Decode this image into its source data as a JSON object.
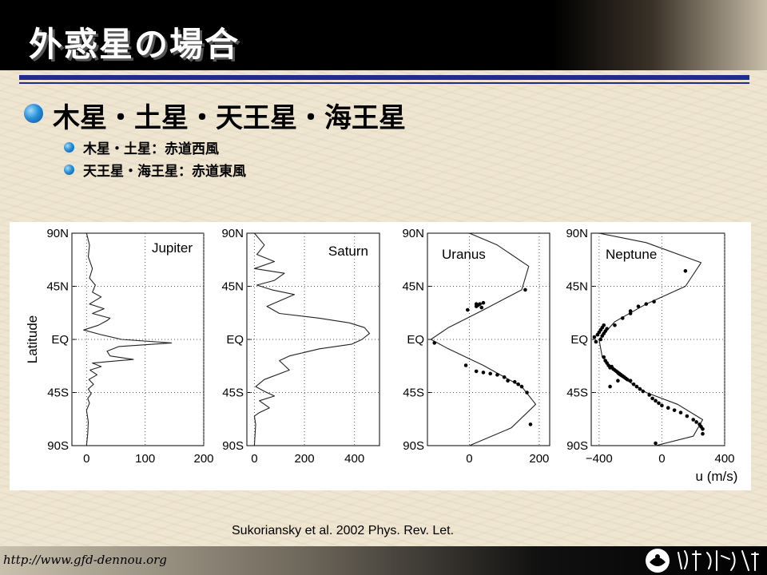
{
  "title": "外惑星の場合",
  "main_bullet": "木星・土星・天王星・海王星",
  "sub_bullets": [
    "木星・土星：赤道西風",
    "天王星・海王星：赤道東風"
  ],
  "citation": "Sukoriansky et al. 2002 Phys. Rev. Let.",
  "url": "http://www.gfd-dennou.org",
  "logo_text": "地球流体電脳倶楽部",
  "chart_data": [
    {
      "type": "line",
      "series": [
        {
          "name": "Jupiter"
        }
      ],
      "xlabel": "",
      "ylabel": "Latitude",
      "xlim": [
        -25,
        200
      ],
      "xticks": [
        "0",
        "100",
        "200"
      ],
      "ylim": [
        -90,
        90
      ],
      "yticks": [
        "90N",
        "45N",
        "EQ",
        "45S",
        "90S"
      ],
      "x": [
        0,
        2,
        3,
        0,
        5,
        2,
        8,
        3,
        12,
        4,
        18,
        6,
        25,
        10,
        80,
        40,
        35,
        55,
        145,
        60,
        25,
        -5,
        20,
        35,
        40,
        10,
        30,
        5,
        25,
        10,
        15,
        5,
        10,
        3,
        5,
        0
      ],
      "y": [
        -90,
        -80,
        -70,
        -60,
        -54,
        -50,
        -46,
        -42,
        -38,
        -34,
        -30,
        -26,
        -23,
        -20,
        -17,
        -14,
        -10,
        -6,
        -3,
        0,
        4,
        8,
        12,
        16,
        18,
        22,
        26,
        30,
        36,
        40,
        46,
        52,
        60,
        70,
        80,
        90
      ]
    },
    {
      "type": "line",
      "series": [
        {
          "name": "Saturn"
        }
      ],
      "xlabel": "",
      "ylabel": "",
      "xlim": [
        -30,
        500
      ],
      "xticks": [
        "0",
        "200",
        "400"
      ],
      "ylim": [
        -90,
        90
      ],
      "yticks": [
        "90N",
        "45N",
        "EQ",
        "45S",
        "90S"
      ],
      "x": [
        0,
        5,
        0,
        20,
        60,
        20,
        80,
        40,
        5,
        40,
        140,
        100,
        140,
        260,
        390,
        430,
        460,
        440,
        380,
        260,
        100,
        50,
        160,
        70,
        10,
        80,
        120,
        0,
        80,
        10,
        40,
        0
      ],
      "y": [
        -90,
        -72,
        -65,
        -62,
        -58,
        -52,
        -48,
        -44,
        -40,
        -34,
        -26,
        -18,
        -14,
        -8,
        -4,
        0,
        5,
        10,
        14,
        18,
        22,
        28,
        38,
        42,
        46,
        50,
        56,
        60,
        66,
        72,
        80,
        90
      ]
    },
    {
      "type": "line",
      "series": [
        {
          "name": "Uranus"
        }
      ],
      "xlabel": "",
      "ylabel": "",
      "xlim": [
        -120,
        230
      ],
      "xticks": [
        "0",
        "200"
      ],
      "ylim": [
        -90,
        90
      ],
      "yticks": [
        "90N",
        "45N",
        "EQ",
        "45S",
        "90S"
      ],
      "x": [
        0,
        120,
        190,
        150,
        40,
        -60,
        -110,
        -60,
        40,
        150,
        170,
        80,
        0
      ],
      "y": [
        -90,
        -75,
        -55,
        -40,
        -22,
        -8,
        0,
        10,
        25,
        42,
        62,
        80,
        90
      ],
      "points_x": [
        20,
        25,
        30,
        40,
        -5,
        160,
        -100,
        -10,
        20,
        40,
        60,
        80,
        100,
        110,
        130,
        140,
        150,
        165,
        175,
        20,
        35
      ],
      "points_y": [
        30,
        29,
        30,
        31,
        25,
        42,
        -3,
        -22,
        -27,
        -28,
        -29,
        -30,
        -32,
        -35,
        -36,
        -38,
        -40,
        -45,
        -72,
        28,
        27
      ]
    },
    {
      "type": "line",
      "series": [
        {
          "name": "Neptune"
        }
      ],
      "xlabel": "u (m/s)",
      "ylabel": "",
      "xlim": [
        -450,
        400
      ],
      "xticks": [
        "−400",
        "0",
        "400"
      ],
      "ylim": [
        -90,
        90
      ],
      "yticks": [
        "90N",
        "45N",
        "EQ",
        "45S",
        "90S"
      ],
      "x": [
        -40,
        200,
        260,
        100,
        -100,
        -280,
        -380,
        -400,
        -300,
        -100,
        150,
        250,
        -100,
        -400
      ],
      "y": [
        -90,
        -82,
        -68,
        -55,
        -45,
        -30,
        -15,
        0,
        15,
        30,
        45,
        65,
        82,
        90
      ],
      "points_x": [
        -370,
        -360,
        -350,
        -340,
        -330,
        -320,
        -310,
        -300,
        -290,
        -280,
        -270,
        -260,
        -250,
        -240,
        -230,
        -220,
        -200,
        -180,
        -160,
        -140,
        -120,
        -80,
        -60,
        -40,
        -20,
        0,
        40,
        80,
        120,
        160,
        200,
        220,
        240,
        250,
        260,
        -390,
        -380,
        -370,
        -360,
        -350,
        -300,
        -250,
        -200,
        -150,
        -100,
        -50,
        -420,
        -430,
        -410,
        -400,
        -390,
        -380,
        -370,
        -200,
        150,
        -330,
        -280,
        -40,
        260
      ],
      "points_y": [
        -15,
        -18,
        -20,
        -22,
        -24,
        -23,
        -25,
        -26,
        -27,
        -28,
        -29,
        -30,
        -31,
        -32,
        -33,
        -34,
        -35,
        -38,
        -40,
        -42,
        -44,
        -47,
        -50,
        -52,
        -54,
        -56,
        -58,
        -60,
        -62,
        -65,
        -68,
        -70,
        -72,
        -74,
        -76,
        0,
        3,
        5,
        7,
        9,
        12,
        18,
        22,
        28,
        30,
        32,
        -2,
        2,
        4,
        6,
        8,
        10,
        12,
        24,
        58,
        -40,
        -35,
        -88,
        -80
      ]
    }
  ],
  "colors": {
    "title_bar": "#000000",
    "rule": "#1c2f8c",
    "bullet": "#2a8fd6"
  }
}
